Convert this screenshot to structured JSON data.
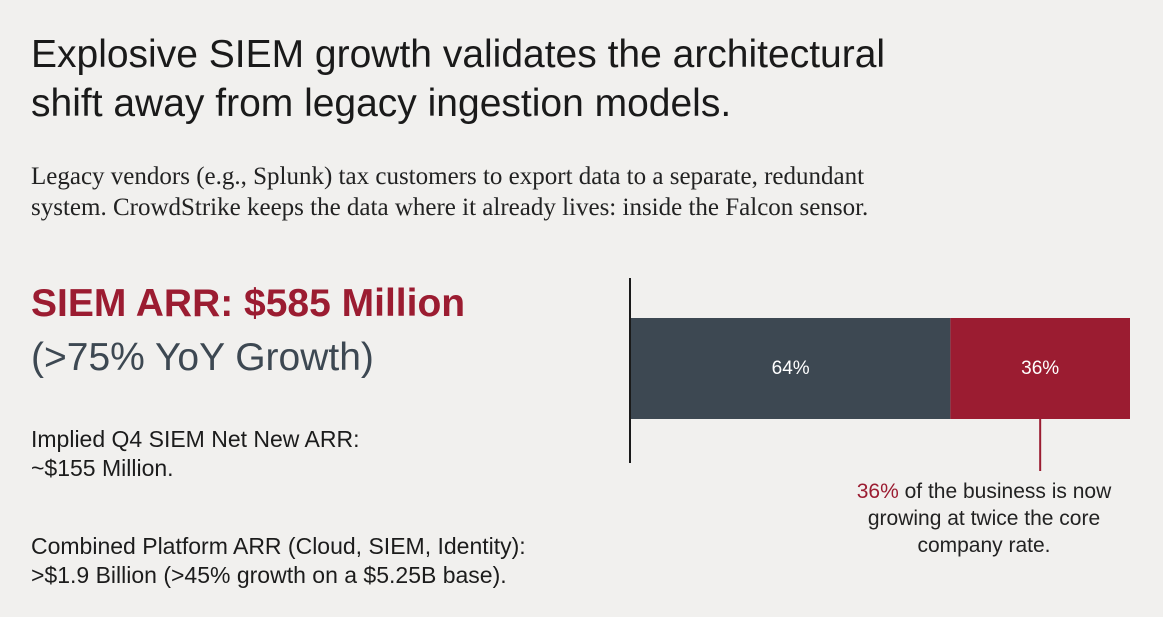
{
  "headline": {
    "line1": "Explosive SIEM growth validates the architectural",
    "line2": "shift away from legacy ingestion models."
  },
  "subtitle": {
    "line1": "Legacy vendors (e.g., Splunk) tax customers to export data to a separate, redundant",
    "line2": "system. CrowdStrike keeps the data where it already lives: inside the Falcon sensor."
  },
  "stat": {
    "title": "SIEM ARR: $585 Million",
    "subtitle": "(>75% YoY Growth)"
  },
  "notes": [
    {
      "line1": "Implied Q4 SIEM Net New ARR:",
      "line2": "~$155 Million."
    },
    {
      "line1": "Combined Platform ARR (Cloud, SIEM, Identity):",
      "line2": ">$1.9 Billion (>45% growth on a $5.25B base)."
    }
  ],
  "callout": {
    "highlight": "36%",
    "text1": " of the business is now",
    "text2": "growing at twice the core",
    "text3": "company rate."
  },
  "chart_data": {
    "type": "bar",
    "orientation": "horizontal",
    "stacked": true,
    "series": [
      {
        "value": 64,
        "label": "64%",
        "color": "#3d4852"
      },
      {
        "value": 36,
        "label": "36%",
        "color": "#9b1c31"
      }
    ],
    "xlim": [
      0,
      100
    ],
    "grid": false,
    "colors": {
      "accent": "#9b1c31",
      "slate": "#3d4852",
      "label_text": "#ffffff",
      "axis": "#1a1a1a"
    }
  }
}
